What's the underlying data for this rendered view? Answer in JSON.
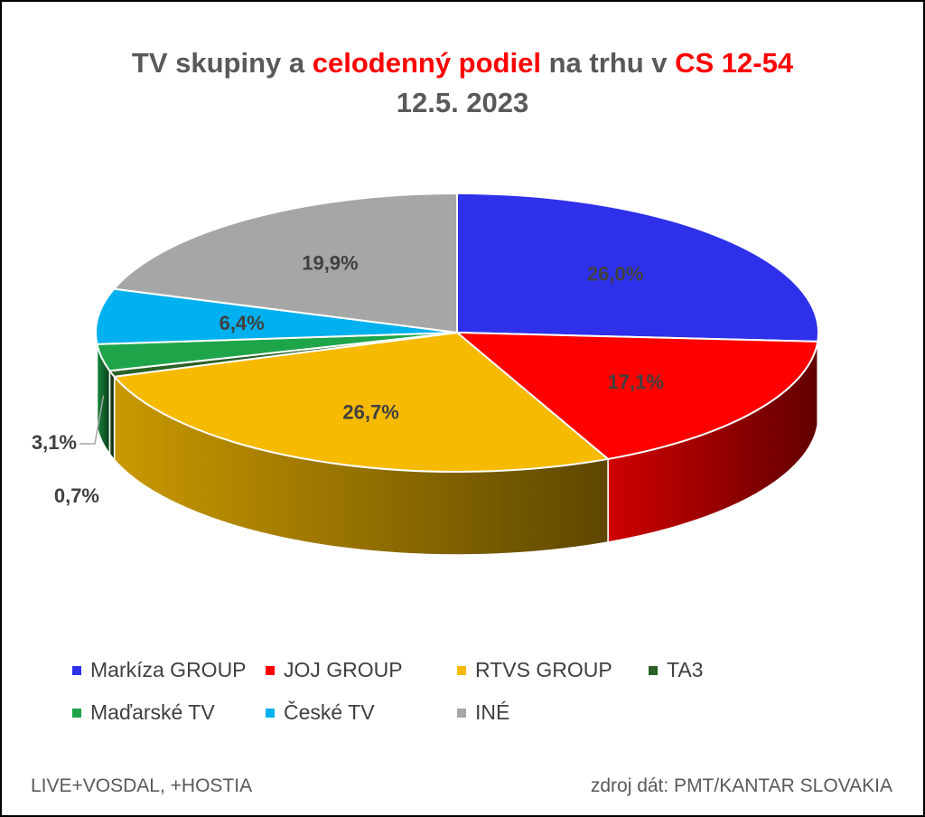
{
  "title": {
    "line1_parts": [
      {
        "text": "TV skupiny a ",
        "highlight": false
      },
      {
        "text": "celodenný podiel",
        "highlight": true
      },
      {
        "text": " na trhu v ",
        "highlight": false
      },
      {
        "text": "CS 12-54",
        "highlight": true
      }
    ],
    "line2": "12.5. 2023",
    "highlight_color": "#ff0000"
  },
  "chart_data": {
    "type": "pie",
    "style": "3d",
    "categories": [
      "Markíza GROUP",
      "JOJ GROUP",
      "RTVS GROUP",
      "TA3",
      "Maďarské  TV",
      "České  TV",
      "INÉ"
    ],
    "values": [
      26.0,
      17.1,
      26.7,
      0.7,
      3.1,
      6.4,
      19.9
    ],
    "labels": [
      "26,0%",
      "17,1%",
      "26,7%",
      "0,7%",
      "3,1%",
      "6,4%",
      "19,9%"
    ],
    "colors": [
      "#2e30ea",
      "#fe0000",
      "#f6ba00",
      "#2b6125",
      "#1ea54a",
      "#00b0ef",
      "#a6a6a6"
    ],
    "legend_position": "bottom"
  },
  "legend": {
    "rows": [
      [
        {
          "label": "Markíza GROUP",
          "color": "#2e30ea"
        },
        {
          "label": "JOJ GROUP",
          "color": "#fe0000"
        },
        {
          "label": "RTVS GROUP",
          "color": "#f6ba00"
        },
        {
          "label": "TA3",
          "color": "#2b6125"
        }
      ],
      [
        {
          "label": "Maďarské  TV",
          "color": "#1ea54a"
        },
        {
          "label": "České  TV",
          "color": "#00b0ef"
        },
        {
          "label": "INÉ",
          "color": "#a6a6a6"
        }
      ]
    ]
  },
  "footer": {
    "left": "LIVE+VOSDAL,  +HOSTIA",
    "right": "zdroj dát: PMT/KANTAR SLOVAKIA"
  }
}
